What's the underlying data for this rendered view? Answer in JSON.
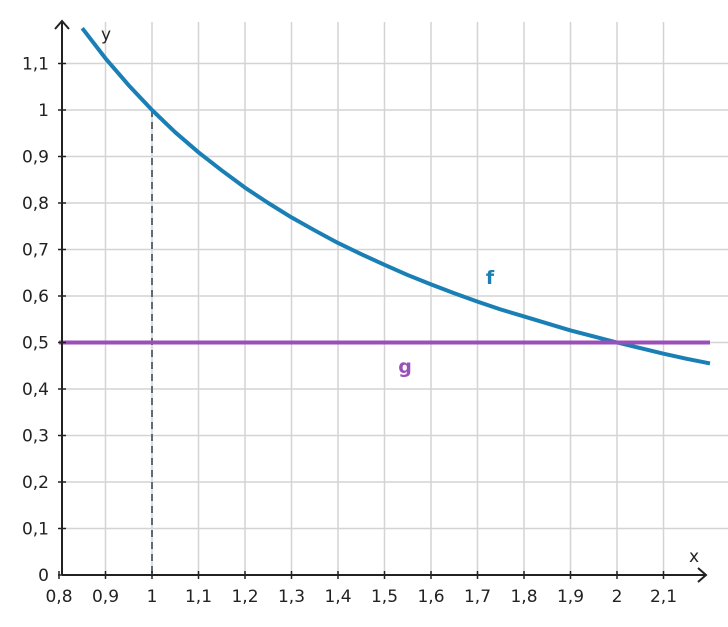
{
  "chart_data": {
    "type": "line",
    "x_label": "x",
    "y_label": "y",
    "xlim": [
      0.8,
      2.2
    ],
    "ylim": [
      0,
      1.2
    ],
    "xticks": [
      {
        "value": 0.8,
        "label": "0,8"
      },
      {
        "value": 0.9,
        "label": "0,9"
      },
      1,
      {
        "value": 1.1,
        "label": "1,1"
      },
      {
        "value": 1.2,
        "label": "1,2"
      },
      {
        "value": 1.3,
        "label": "1,3"
      },
      {
        "value": 1.4,
        "label": "1,4"
      },
      {
        "value": 1.5,
        "label": "1,5"
      },
      {
        "value": 1.6,
        "label": "1,6"
      },
      {
        "value": 1.7,
        "label": "1,7"
      },
      {
        "value": 1.8,
        "label": "1,8"
      },
      {
        "value": 1.9,
        "label": "1,9"
      },
      2,
      {
        "value": 2.1,
        "label": "2,1"
      }
    ],
    "yticks": [
      0,
      {
        "value": 0.1,
        "label": "0,1"
      },
      {
        "value": 0.2,
        "label": "0,2"
      },
      {
        "value": 0.3,
        "label": "0,3"
      },
      {
        "value": 0.4,
        "label": "0,4"
      },
      {
        "value": 0.5,
        "label": "0,5"
      },
      {
        "value": 0.6,
        "label": "0,6"
      },
      {
        "value": 0.7,
        "label": "0,7"
      },
      {
        "value": 0.8,
        "label": "0,8"
      },
      {
        "value": 0.9,
        "label": "0,9"
      },
      1,
      {
        "value": 1.1,
        "label": "1,1"
      }
    ],
    "grid": true,
    "series": [
      {
        "name": "f",
        "color": "#1a7fb5",
        "x": [
          0.85,
          0.9,
          0.95,
          1,
          1.05,
          1.1,
          1.15,
          1.2,
          1.25,
          1.3,
          1.35,
          1.4,
          1.45,
          1.5,
          1.55,
          1.6,
          1.65,
          1.7,
          1.75,
          1.8,
          1.85,
          1.9,
          1.95,
          2,
          2.05,
          2.1,
          2.15,
          2.2
        ],
        "values": [
          1.176,
          1.111,
          1.053,
          1,
          0.952,
          0.909,
          0.87,
          0.833,
          0.8,
          0.769,
          0.741,
          0.714,
          0.69,
          0.667,
          0.645,
          0.625,
          0.606,
          0.588,
          0.571,
          0.556,
          0.541,
          0.526,
          0.513,
          0.5,
          0.488,
          0.476,
          0.465,
          0.455
        ]
      },
      {
        "name": "g",
        "color": "#9b4fb8",
        "x": [
          0.8,
          2.2
        ],
        "values": [
          0.5,
          0.5
        ]
      }
    ],
    "guide": {
      "x": 1,
      "y": 1,
      "color": "#5f6b70"
    }
  }
}
